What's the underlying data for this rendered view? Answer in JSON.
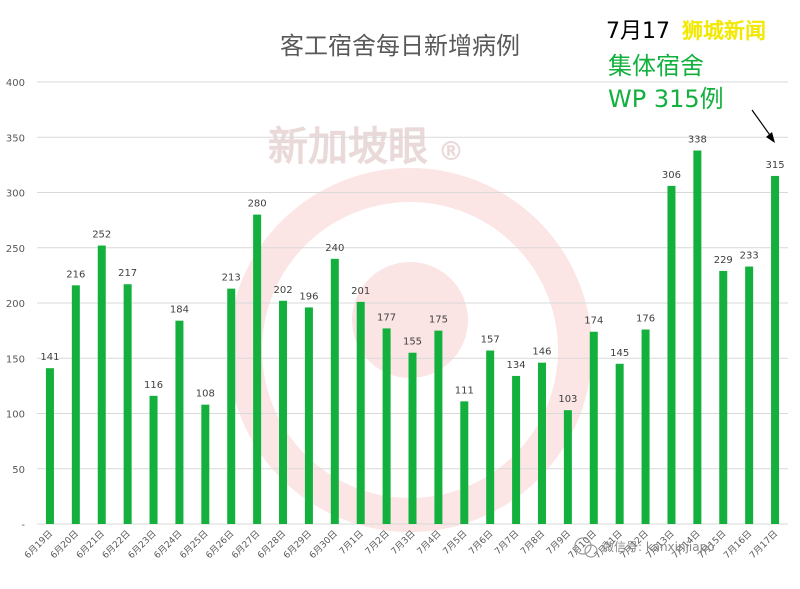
{
  "chart_data": {
    "type": "bar",
    "title": "客工宿舍每日新增病例",
    "categories": [
      "6月19日",
      "6月20日",
      "6月21日",
      "6月22日",
      "6月23日",
      "6月24日",
      "6月25日",
      "6月26日",
      "6月27日",
      "6月28日",
      "6月29日",
      "6月30日",
      "7月1日",
      "7月2日",
      "7月3日",
      "7月4日",
      "7月5日",
      "7月6日",
      "7月7日",
      "7月8日",
      "7月9日",
      "7月10日",
      "7月11日",
      "7月12日",
      "7月13日",
      "7月14日",
      "7月15日",
      "7月16日",
      "7月17日"
    ],
    "values": [
      141,
      216,
      252,
      217,
      116,
      184,
      108,
      213,
      280,
      202,
      196,
      240,
      201,
      177,
      155,
      175,
      111,
      157,
      134,
      146,
      103,
      174,
      145,
      176,
      306,
      338,
      229,
      233,
      315
    ],
    "ylim": [
      0,
      400
    ],
    "yticks": [
      "-",
      "50",
      "100",
      "150",
      "200",
      "250",
      "300",
      "350",
      "400"
    ],
    "grid": true,
    "bar_color": "#14b03e"
  },
  "annotation": {
    "date": "7月17",
    "source": "狮城新闻",
    "line2": "集体宿舍",
    "line3": "WP 315例"
  },
  "watermark": {
    "text": "新加坡眼",
    "wechat_text": "微信号: kanxinjiapo"
  },
  "colors": {
    "bar": "#14b03e",
    "annotation_green": "#14b03e",
    "source_yellow": "#f2e800",
    "watermark_red": "#e53935"
  }
}
